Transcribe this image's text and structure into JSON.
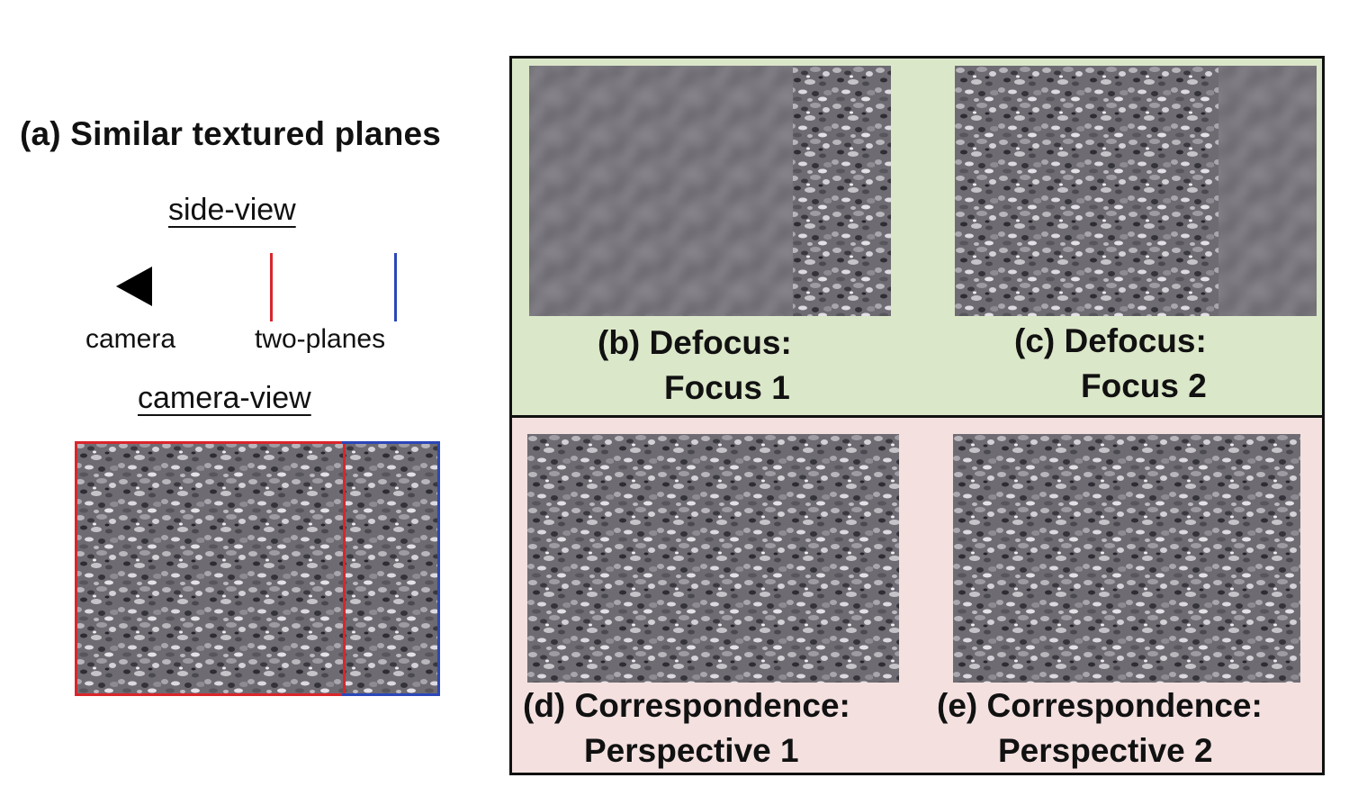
{
  "panel_a": {
    "title": "(a) Similar textured planes",
    "side_view_label": "side-view",
    "camera_label": "camera",
    "planes_label": "two-planes",
    "camera_view_label": "camera-view",
    "colors": {
      "near_plane": "#d9262b",
      "far_plane": "#2b47b8"
    }
  },
  "panels": {
    "b": {
      "line1": "(b) Defocus:",
      "line2": "Focus 1"
    },
    "c": {
      "line1": "(c) Defocus:",
      "line2": "Focus 2"
    },
    "d": {
      "line1": "(d) Correspondence:",
      "line2": "Perspective 1"
    },
    "e": {
      "line1": "(e) Correspondence:",
      "line2": "Perspective 2"
    }
  },
  "colors": {
    "defocus_band": "#dbe7c9",
    "correspondence_band": "#f3e0df",
    "border": "#111111"
  }
}
